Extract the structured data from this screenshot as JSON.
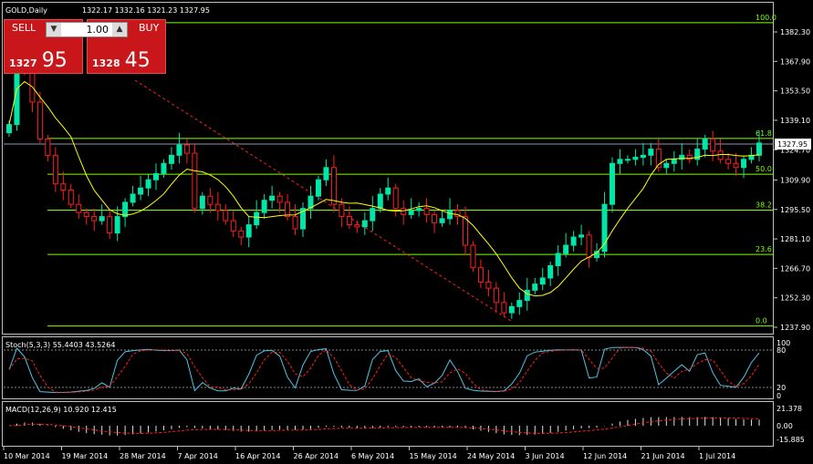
{
  "header": {
    "symbol_label": "GOLD,Daily",
    "ohlc": "1322.17 1332.16 1321.23 1327.95"
  },
  "trade_panel": {
    "sell_label": "SELL",
    "buy_label": "BUY",
    "lot_value": "1.00",
    "sell_small": "1327",
    "sell_big": "95",
    "buy_small": "1328",
    "buy_big": "45"
  },
  "price_axis": [
    "1382.30",
    "1367.90",
    "1353.50",
    "1339.10",
    "1324.70",
    "1309.90",
    "1295.50",
    "1281.10",
    "1266.70",
    "1252.30",
    "1237.90"
  ],
  "current_price": "1327.95",
  "fibonacci": [
    {
      "level": "100.0",
      "price": 1386.8
    },
    {
      "level": "61.8",
      "price": 1330.2
    },
    {
      "level": "50.0",
      "price": 1312.7
    },
    {
      "level": "38.2",
      "price": 1295.2
    },
    {
      "level": "23.6",
      "price": 1273.5
    },
    {
      "level": "0.0",
      "price": 1238.5
    }
  ],
  "stoch": {
    "label": "Stoch(5,3,3) 55.4403 43.5264",
    "ticks": [
      "100",
      "80",
      "20",
      "0"
    ]
  },
  "macd": {
    "label": "MACD(12,26,9) 10.920 12.415",
    "ticks": [
      "21.378",
      "0.00",
      "-15.885"
    ]
  },
  "time_axis": [
    "10 Mar 2014",
    "19 Mar 2014",
    "28 Mar 2014",
    "7 Apr 2014",
    "16 Apr 2014",
    "26 Apr 2014",
    "6 May 2014",
    "15 May 2014",
    "24 May 2014",
    "3 Jun 2014",
    "12 Jun 2014",
    "21 Jun 2014",
    "1 Jul 2014"
  ],
  "colors": {
    "up": "#00e6a8",
    "down": "#ff1e1e",
    "ma": "#ffff00",
    "fib": "#7fff00",
    "grid": "#c0c0c0",
    "sell": "#c8161b"
  },
  "chart_data": {
    "type": "candlestick",
    "closes": [
      1337,
      1372,
      1365,
      1348,
      1330,
      1322,
      1308,
      1305,
      1298,
      1294,
      1292,
      1290,
      1292,
      1284,
      1292,
      1299,
      1303,
      1306,
      1310,
      1313,
      1318,
      1322,
      1327,
      1323,
      1296,
      1302,
      1298,
      1295,
      1290,
      1285,
      1282,
      1288,
      1294,
      1300,
      1302,
      1299,
      1292,
      1286,
      1296,
      1302,
      1310,
      1316,
      1298,
      1292,
      1288,
      1287,
      1290,
      1296,
      1303,
      1306,
      1296,
      1293,
      1295,
      1296,
      1293,
      1289,
      1291,
      1295,
      1292,
      1278,
      1267,
      1260,
      1257,
      1250,
      1245,
      1248,
      1251,
      1256,
      1259,
      1262,
      1268,
      1274,
      1278,
      1282,
      1283,
      1272,
      1275,
      1298,
      1318,
      1320,
      1320,
      1321,
      1322,
      1325,
      1316,
      1318,
      1320,
      1322,
      1320,
      1325,
      1330,
      1324,
      1320,
      1318,
      1316,
      1320,
      1322,
      1328
    ],
    "ma_line": "smoothed close (yellow)",
    "ylim": [
      1237.9,
      1389
    ]
  }
}
